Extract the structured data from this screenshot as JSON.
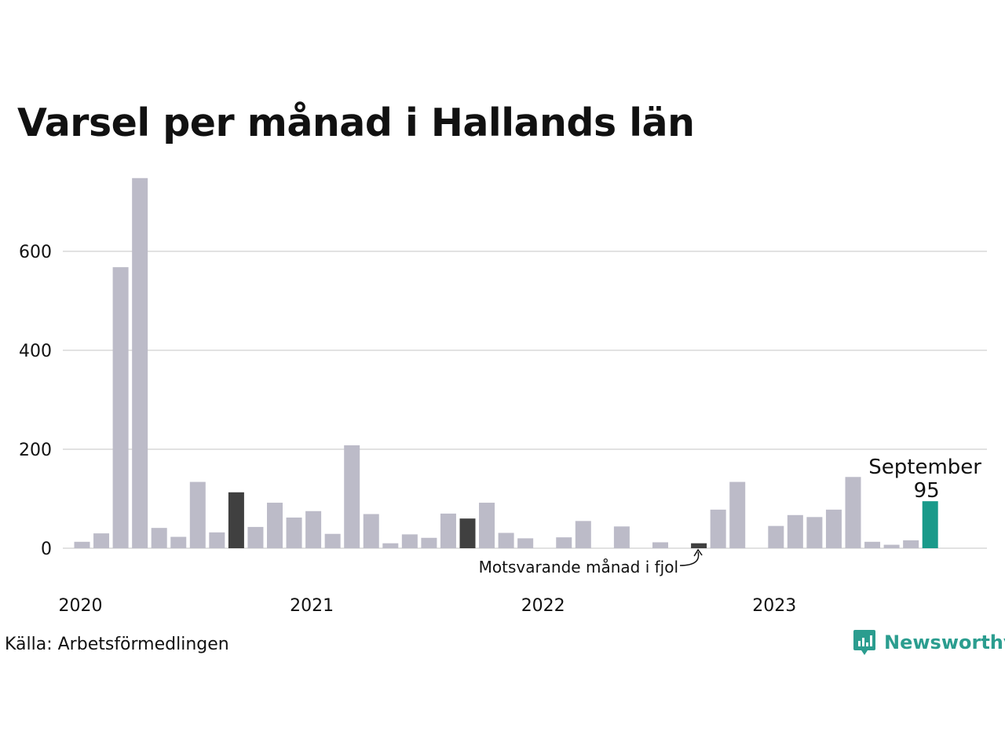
{
  "title": "Varsel per månad i Hallands län",
  "source": "Källa: Arbetsförmedlingen",
  "logo": {
    "text": "Newsworthy",
    "icon": "newsworthy-chart-bubble-icon",
    "color": "#2b9d8f"
  },
  "colors": {
    "default_bar": "#bcbbc8",
    "previous_year_bar": "#404040",
    "highlight_bar": "#1a9a8a",
    "grid": "#e2e2e2"
  },
  "chart_data": {
    "type": "bar",
    "title": "Varsel per månad i Hallands län",
    "xlabel": "",
    "ylabel": "",
    "ylim": [
      0,
      750
    ],
    "yticks": [
      0,
      200,
      400,
      600
    ],
    "grid": true,
    "x_tick_labels": [
      {
        "label": "2020",
        "index": 0
      },
      {
        "label": "2021",
        "index": 12
      },
      {
        "label": "2022",
        "index": 24
      },
      {
        "label": "2023",
        "index": 36
      }
    ],
    "categories": [
      "2020-01",
      "2020-02",
      "2020-03",
      "2020-04",
      "2020-05",
      "2020-06",
      "2020-07",
      "2020-08",
      "2020-09",
      "2020-10",
      "2020-11",
      "2020-12",
      "2021-01",
      "2021-02",
      "2021-03",
      "2021-04",
      "2021-05",
      "2021-06",
      "2021-07",
      "2021-08",
      "2021-09",
      "2021-10",
      "2021-11",
      "2021-12",
      "2022-01",
      "2022-02",
      "2022-03",
      "2022-04",
      "2022-05",
      "2022-06",
      "2022-07",
      "2022-08",
      "2022-09",
      "2022-10",
      "2022-11",
      "2022-12",
      "2023-01",
      "2023-02",
      "2023-03",
      "2023-04",
      "2023-05",
      "2023-06",
      "2023-07",
      "2023-08",
      "2023-09"
    ],
    "values": [
      13,
      30,
      568,
      748,
      41,
      23,
      134,
      32,
      113,
      43,
      92,
      62,
      75,
      29,
      208,
      69,
      10,
      28,
      21,
      70,
      60,
      92,
      31,
      20,
      0,
      22,
      55,
      0,
      44,
      0,
      12,
      0,
      10,
      78,
      134,
      0,
      45,
      67,
      63,
      78,
      144,
      13,
      7,
      16,
      95
    ],
    "previous_year_indices": [
      8,
      20,
      32
    ],
    "highlight_index": 44,
    "annotations": [
      {
        "text": "September",
        "index": 44
      },
      {
        "text": "95",
        "index": 44
      },
      {
        "text": "Motsvarande månad i fjol",
        "index": 32
      }
    ]
  }
}
